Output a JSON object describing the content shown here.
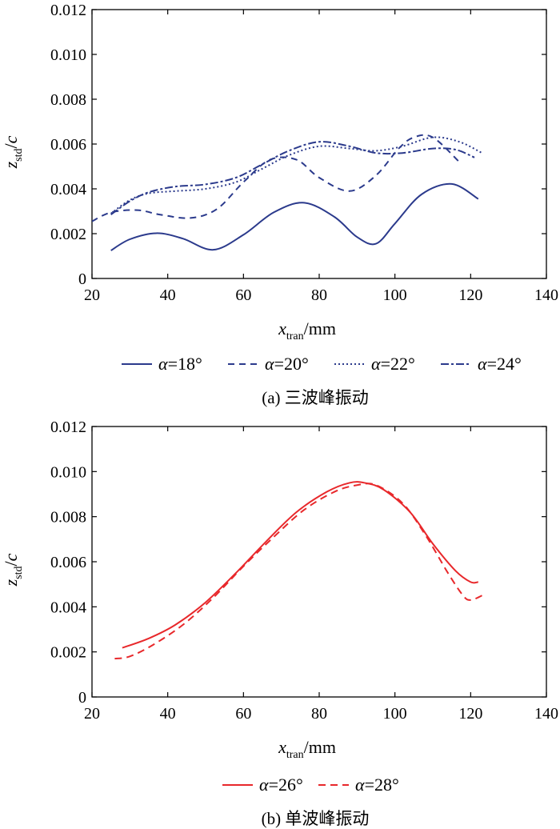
{
  "chart_data": [
    {
      "type": "line",
      "caption": "(a) 三波峰振动",
      "xlabel_main": "x",
      "xlabel_sub": "tran",
      "xlabel_unit": "/mm",
      "ylabel_main": "z",
      "ylabel_sub": "std",
      "ylabel_denom": "/c",
      "xlim": [
        20,
        140
      ],
      "ylim": [
        0,
        0.012
      ],
      "xticks": [
        "20",
        "40",
        "60",
        "80",
        "100",
        "120",
        "140"
      ],
      "yticks": [
        "0",
        "0.002",
        "0.004",
        "0.006",
        "0.008",
        "0.010",
        "0.012"
      ],
      "legend_position": "bottom",
      "series": [
        {
          "name": "α=18°",
          "symbol": "α",
          "value_label": "=18°",
          "color": "#2b3a8c",
          "dash": "solid",
          "x": [
            25,
            30,
            37,
            44,
            52,
            60,
            68,
            76,
            84,
            90,
            95,
            100,
            107,
            115,
            122
          ],
          "y": [
            0.00125,
            0.00175,
            0.00202,
            0.00178,
            0.00128,
            0.00195,
            0.00295,
            0.00338,
            0.00275,
            0.00185,
            0.00155,
            0.00245,
            0.00375,
            0.00422,
            0.00355
          ]
        },
        {
          "name": "α=20°",
          "symbol": "α",
          "value_label": "=20°",
          "color": "#2b3a8c",
          "dash": "8 6",
          "x": [
            20,
            25,
            32,
            38,
            46,
            53,
            60,
            67,
            74,
            80,
            88,
            95,
            101,
            105,
            110,
            117
          ],
          "y": [
            0.00255,
            0.00295,
            0.00305,
            0.00285,
            0.0027,
            0.0031,
            0.0043,
            0.0053,
            0.0053,
            0.0045,
            0.0039,
            0.0046,
            0.0058,
            0.0063,
            0.0063,
            0.0052
          ]
        },
        {
          "name": "α=22°",
          "symbol": "α",
          "value_label": "=22°",
          "color": "#2b3a8c",
          "dash": "2 3",
          "x": [
            25,
            30,
            35,
            42,
            50,
            58,
            65,
            72,
            80,
            88,
            95,
            102,
            110,
            117,
            123
          ],
          "y": [
            0.0029,
            0.0035,
            0.0038,
            0.0039,
            0.004,
            0.0043,
            0.0049,
            0.0055,
            0.0059,
            0.0058,
            0.0057,
            0.0059,
            0.0063,
            0.0061,
            0.0056
          ]
        },
        {
          "name": "α=24°",
          "symbol": "α",
          "value_label": "=24°",
          "color": "#2b3a8c",
          "dash": "10 3 3 3",
          "x": [
            25,
            30,
            35,
            42,
            50,
            58,
            65,
            72,
            80,
            88,
            95,
            102,
            110,
            116,
            121
          ],
          "y": [
            0.00285,
            0.00345,
            0.00385,
            0.0041,
            0.0042,
            0.0045,
            0.0051,
            0.0057,
            0.0061,
            0.0059,
            0.0056,
            0.0056,
            0.0058,
            0.00575,
            0.0054
          ]
        }
      ]
    },
    {
      "type": "line",
      "caption": "(b) 单波峰振动",
      "xlabel_main": "x",
      "xlabel_sub": "tran",
      "xlabel_unit": "/mm",
      "ylabel_main": "z",
      "ylabel_sub": "std",
      "ylabel_denom": "/c",
      "xlim": [
        20,
        140
      ],
      "ylim": [
        0,
        0.012
      ],
      "xticks": [
        "20",
        "40",
        "60",
        "80",
        "100",
        "120",
        "140"
      ],
      "yticks": [
        "0",
        "0.002",
        "0.004",
        "0.006",
        "0.008",
        "0.010",
        "0.012"
      ],
      "legend_position": "bottom",
      "series": [
        {
          "name": "α=26°",
          "symbol": "α",
          "value_label": "=26°",
          "color": "#e8282b",
          "dash": "solid",
          "x": [
            28,
            35,
            42,
            50,
            58,
            66,
            74,
            82,
            88,
            92,
            97,
            104,
            110,
            116,
            120,
            122
          ],
          "y": [
            0.00218,
            0.0026,
            0.0032,
            0.0042,
            0.0055,
            0.0069,
            0.0082,
            0.0091,
            0.0095,
            0.0095,
            0.0092,
            0.0082,
            0.0068,
            0.0056,
            0.0051,
            0.0051
          ]
        },
        {
          "name": "α=28°",
          "symbol": "α",
          "value_label": "=28°",
          "color": "#e8282b",
          "dash": "9 6",
          "x": [
            26,
            30,
            36,
            44,
            52,
            60,
            68,
            76,
            84,
            90,
            95,
            102,
            108,
            114,
            118,
            120,
            123
          ],
          "y": [
            0.0017,
            0.0018,
            0.0023,
            0.0032,
            0.0044,
            0.0058,
            0.0071,
            0.0083,
            0.0091,
            0.0094,
            0.0094,
            0.0086,
            0.0072,
            0.0055,
            0.0045,
            0.0043,
            0.0045
          ]
        }
      ]
    }
  ]
}
